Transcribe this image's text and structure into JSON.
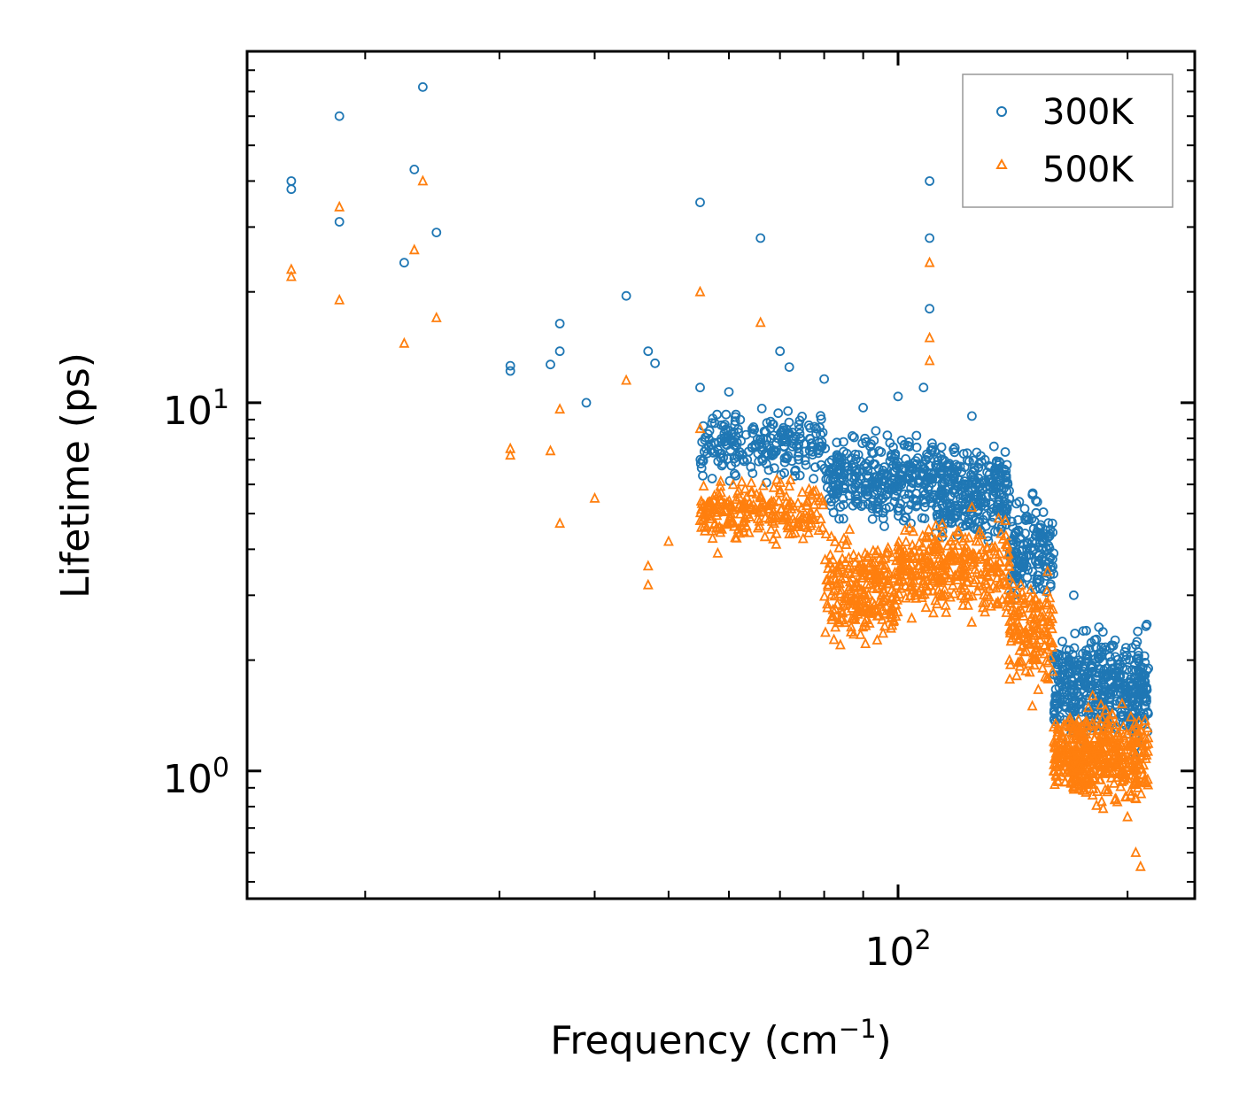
{
  "chart_data": {
    "type": "scatter",
    "x_scale": "log",
    "y_scale": "log",
    "xlim": [
      14,
      245
    ],
    "ylim": [
      0.45,
      90
    ],
    "xlabel": "Frequency (cm",
    "xlabel_sup": "−1",
    "xlabel_end": ")",
    "ylabel": "Lifetime (ps)",
    "x_ticks": [
      {
        "value": 100,
        "base": "10",
        "exp": "2"
      }
    ],
    "y_ticks": [
      {
        "value": 1,
        "base": "10",
        "exp": "0"
      },
      {
        "value": 10,
        "base": "10",
        "exp": "1"
      }
    ],
    "legend_position": "top-right",
    "series": [
      {
        "name": "300K",
        "color": "#1f77b4",
        "marker": "circle",
        "points": [
          [
            16.0,
            40
          ],
          [
            16.0,
            38
          ],
          [
            18.5,
            60
          ],
          [
            18.5,
            31
          ],
          [
            22.5,
            24
          ],
          [
            23.2,
            43
          ],
          [
            23.8,
            72
          ],
          [
            24.8,
            29
          ],
          [
            31,
            12.6
          ],
          [
            31,
            12.2
          ],
          [
            35,
            12.7
          ],
          [
            36,
            13.8
          ],
          [
            36,
            16.4
          ],
          [
            39,
            10.0
          ],
          [
            44,
            19.5
          ],
          [
            47,
            13.8
          ],
          [
            48,
            12.8
          ],
          [
            55,
            35
          ],
          [
            55,
            11.0
          ],
          [
            60,
            10.7
          ],
          [
            66,
            28
          ],
          [
            70,
            13.8
          ],
          [
            72,
            12.5
          ],
          [
            80,
            11.6
          ],
          [
            90,
            9.7
          ],
          [
            100,
            10.4
          ],
          [
            108,
            11.0
          ],
          [
            110,
            40
          ],
          [
            110,
            28
          ],
          [
            110,
            18
          ],
          [
            125,
            9.2
          ],
          [
            130,
            7.0
          ],
          [
            135,
            6.0
          ],
          [
            140,
            5.5
          ],
          [
            150,
            4.2
          ],
          [
            160,
            3.9
          ],
          [
            170,
            3.0
          ],
          [
            175,
            2.4
          ],
          [
            185,
            2.1
          ],
          [
            195,
            1.8
          ],
          [
            205,
            2.2
          ],
          [
            212,
            2.5
          ]
        ],
        "bands": [
          {
            "x_from": 55,
            "x_to": 80,
            "y_from": 5.8,
            "y_to": 10.2,
            "count": 230
          },
          {
            "x_from": 80,
            "x_to": 112,
            "y_from": 4.4,
            "y_to": 8.8,
            "count": 340
          },
          {
            "x_from": 112,
            "x_to": 140,
            "y_from": 3.7,
            "y_to": 8.4,
            "count": 300
          },
          {
            "x_from": 140,
            "x_to": 160,
            "y_from": 2.6,
            "y_to": 6.0,
            "count": 160
          },
          {
            "x_from": 160,
            "x_to": 213,
            "y_from": 1.05,
            "y_to": 2.7,
            "count": 460
          }
        ]
      },
      {
        "name": "500K",
        "color": "#ff7f0e",
        "marker": "triangle",
        "points": [
          [
            16.0,
            23
          ],
          [
            16.0,
            22
          ],
          [
            18.5,
            34
          ],
          [
            18.5,
            19
          ],
          [
            22.5,
            14.5
          ],
          [
            23.2,
            26
          ],
          [
            23.8,
            40
          ],
          [
            24.8,
            17
          ],
          [
            31,
            7.5
          ],
          [
            31,
            7.2
          ],
          [
            35,
            7.4
          ],
          [
            36,
            9.6
          ],
          [
            36,
            4.7
          ],
          [
            40,
            5.5
          ],
          [
            44,
            11.5
          ],
          [
            47,
            3.6
          ],
          [
            47,
            3.2
          ],
          [
            50,
            4.2
          ],
          [
            55,
            20
          ],
          [
            55,
            8.5
          ],
          [
            58,
            3.9
          ],
          [
            66,
            16.5
          ],
          [
            72,
            4.4
          ],
          [
            90,
            2.9
          ],
          [
            100,
            3.5
          ],
          [
            110,
            24
          ],
          [
            110,
            15
          ],
          [
            110,
            13
          ],
          [
            125,
            5.2
          ],
          [
            130,
            2.7
          ],
          [
            140,
            2.0
          ],
          [
            150,
            1.5
          ],
          [
            160,
            1.0
          ],
          [
            170,
            0.9
          ],
          [
            180,
            1.6
          ],
          [
            200,
            0.75
          ],
          [
            205,
            0.6
          ],
          [
            208,
            0.55
          ]
        ],
        "bands": [
          {
            "x_from": 55,
            "x_to": 80,
            "y_from": 4.0,
            "y_to": 6.5,
            "count": 230
          },
          {
            "x_from": 80,
            "x_to": 100,
            "y_from": 2.0,
            "y_to": 4.8,
            "count": 250
          },
          {
            "x_from": 100,
            "x_to": 140,
            "y_from": 2.4,
            "y_to": 5.2,
            "count": 330
          },
          {
            "x_from": 140,
            "x_to": 160,
            "y_from": 1.5,
            "y_to": 3.8,
            "count": 150
          },
          {
            "x_from": 160,
            "x_to": 213,
            "y_from": 0.75,
            "y_to": 1.6,
            "count": 460
          }
        ]
      }
    ]
  }
}
